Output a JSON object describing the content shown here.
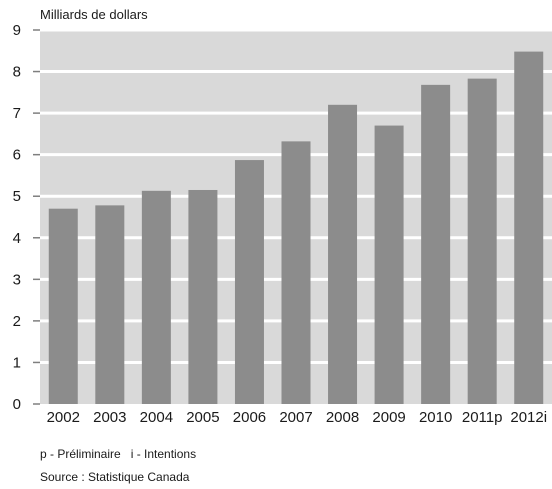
{
  "chart_data": {
    "type": "bar",
    "ylabel": "Milliards de dollars",
    "xlabel": "",
    "ylim": [
      0,
      9
    ],
    "yticks": [
      0,
      1,
      2,
      3,
      4,
      5,
      6,
      7,
      8,
      9
    ],
    "grid": true,
    "categories": [
      "2002",
      "2003",
      "2004",
      "2005",
      "2006",
      "2007",
      "2008",
      "2009",
      "2010",
      "2011p",
      "2012i"
    ],
    "values": [
      4.7,
      4.78,
      5.13,
      5.15,
      5.87,
      6.32,
      7.2,
      6.7,
      7.68,
      7.83,
      8.48
    ],
    "colors": {
      "plot_background": "#d9d9d9",
      "bar": "#8c8c8c",
      "gridline": "#ffffff",
      "tick": "#7f7f7f"
    }
  },
  "notes": {
    "preliminary": "p - Préliminaire",
    "intentions": "i - Intentions",
    "source": "Source : Statistique Canada"
  }
}
